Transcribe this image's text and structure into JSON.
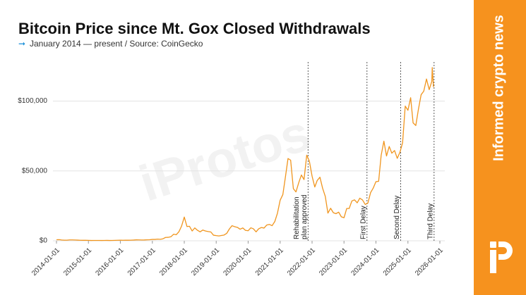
{
  "chart_data": {
    "type": "line",
    "title": "Bitcoin Price since Mt. Gox Closed Withdrawals",
    "subtitle": "January 2014 — present / Source: CoinGecko",
    "watermark": "iProtos",
    "sidebar_text": "Informed crypto news",
    "color": "#f0951e",
    "grid": true,
    "ylim": [
      0,
      128000
    ],
    "yticks": [
      {
        "value": 0,
        "label": "$0"
      },
      {
        "value": 50000,
        "label": "$50,000"
      },
      {
        "value": 100000,
        "label": "$100,000"
      }
    ],
    "xlim": [
      "2014-01-01",
      "2026-01-01"
    ],
    "xticks": [
      "2014-01-01",
      "2015-01-01",
      "2016-01-01",
      "2017-01-01",
      "2018-01-01",
      "2019-01-01",
      "2020-01-01",
      "2021-01-01",
      "2022-01-01",
      "2023-01-01",
      "2024-01-01",
      "2025-01-01",
      "2026-01-01"
    ],
    "annotations": [
      {
        "x": "2021-11-16",
        "lines": [
          "Rehabilitation",
          "plan approved"
        ]
      },
      {
        "x": "2023-09-21",
        "lines": [
          "First Delay"
        ]
      },
      {
        "x": "2024-10-10",
        "lines": [
          "Second Delay"
        ]
      },
      {
        "x": "2025-10-27",
        "lines": [
          "Third Delay"
        ]
      }
    ],
    "x": [
      "2014-01-01",
      "2014-02-01",
      "2014-03-01",
      "2014-04-01",
      "2014-05-01",
      "2014-06-01",
      "2014-07-01",
      "2014-08-01",
      "2014-09-01",
      "2014-10-01",
      "2014-11-01",
      "2014-12-01",
      "2015-01-01",
      "2015-02-01",
      "2015-03-01",
      "2015-04-01",
      "2015-05-01",
      "2015-06-01",
      "2015-07-01",
      "2015-08-01",
      "2015-09-01",
      "2015-10-01",
      "2015-11-01",
      "2015-12-01",
      "2016-01-01",
      "2016-02-01",
      "2016-03-01",
      "2016-04-01",
      "2016-05-01",
      "2016-06-01",
      "2016-07-01",
      "2016-08-01",
      "2016-09-01",
      "2016-10-01",
      "2016-11-01",
      "2016-12-01",
      "2017-01-01",
      "2017-02-01",
      "2017-03-01",
      "2017-04-01",
      "2017-05-01",
      "2017-06-01",
      "2017-07-01",
      "2017-08-01",
      "2017-09-01",
      "2017-10-01",
      "2017-11-01",
      "2017-12-01",
      "2018-01-01",
      "2018-02-01",
      "2018-03-01",
      "2018-04-01",
      "2018-05-01",
      "2018-06-01",
      "2018-07-01",
      "2018-08-01",
      "2018-09-01",
      "2018-10-01",
      "2018-11-01",
      "2018-12-01",
      "2019-01-01",
      "2019-02-01",
      "2019-03-01",
      "2019-04-01",
      "2019-05-01",
      "2019-06-01",
      "2019-07-01",
      "2019-08-01",
      "2019-09-01",
      "2019-10-01",
      "2019-11-01",
      "2019-12-01",
      "2020-01-01",
      "2020-02-01",
      "2020-03-01",
      "2020-04-01",
      "2020-05-01",
      "2020-06-01",
      "2020-07-01",
      "2020-08-01",
      "2020-09-01",
      "2020-10-01",
      "2020-11-01",
      "2020-12-01",
      "2021-01-01",
      "2021-02-01",
      "2021-03-01",
      "2021-04-01",
      "2021-05-01",
      "2021-06-01",
      "2021-07-01",
      "2021-08-01",
      "2021-09-01",
      "2021-10-01",
      "2021-11-01",
      "2021-12-01",
      "2022-01-01",
      "2022-02-01",
      "2022-03-01",
      "2022-04-01",
      "2022-05-01",
      "2022-06-01",
      "2022-07-01",
      "2022-08-01",
      "2022-09-01",
      "2022-10-01",
      "2022-11-01",
      "2022-12-01",
      "2023-01-01",
      "2023-02-01",
      "2023-03-01",
      "2023-04-01",
      "2023-05-01",
      "2023-06-01",
      "2023-07-01",
      "2023-08-01",
      "2023-09-01",
      "2023-10-01",
      "2023-11-01",
      "2023-12-01",
      "2024-01-01",
      "2024-02-01",
      "2024-03-01",
      "2024-04-01",
      "2024-05-01",
      "2024-06-01",
      "2024-07-01",
      "2024-08-01",
      "2024-09-01",
      "2024-10-01",
      "2024-11-01",
      "2024-12-01",
      "2025-01-01",
      "2025-02-01",
      "2025-03-01",
      "2025-04-01",
      "2025-05-01",
      "2025-06-01",
      "2025-07-01",
      "2025-08-01",
      "2025-09-01",
      "2025-10-01",
      "2025-10-06",
      "2025-10-20"
    ],
    "values": [
      770,
      830,
      560,
      450,
      450,
      630,
      640,
      580,
      480,
      390,
      340,
      380,
      320,
      220,
      250,
      245,
      235,
      230,
      260,
      280,
      230,
      240,
      310,
      380,
      430,
      370,
      440,
      420,
      450,
      530,
      670,
      620,
      570,
      610,
      700,
      740,
      970,
      970,
      1190,
      1070,
      1400,
      2400,
      2480,
      2880,
      4700,
      4340,
      6500,
      10500,
      17000,
      10200,
      10400,
      7000,
      9200,
      7500,
      6400,
      7700,
      7000,
      6600,
      6300,
      4000,
      3700,
      3450,
      3800,
      4100,
      5300,
      8500,
      10800,
      10100,
      9600,
      8300,
      9200,
      7500,
      7200,
      9300,
      8600,
      6400,
      8600,
      9500,
      9100,
      11300,
      11700,
      10800,
      13800,
      19700,
      29000,
      33100,
      45100,
      58900,
      57700,
      37300,
      35000,
      41500,
      47100,
      43800,
      61300,
      57000,
      46300,
      38500,
      43200,
      45500,
      37700,
      31800,
      19800,
      23300,
      20100,
      19400,
      20500,
      17200,
      16500,
      23100,
      23100,
      28500,
      29300,
      27200,
      30500,
      29200,
      26000,
      27000,
      34500,
      37700,
      42300,
      42600,
      61200,
      71300,
      60700,
      67500,
      62700,
      64600,
      59000,
      63300,
      70200,
      96400,
      93400,
      102400,
      84400,
      82500,
      94200,
      104600,
      107100,
      115800,
      108200,
      114100,
      124000,
      110000
    ]
  }
}
